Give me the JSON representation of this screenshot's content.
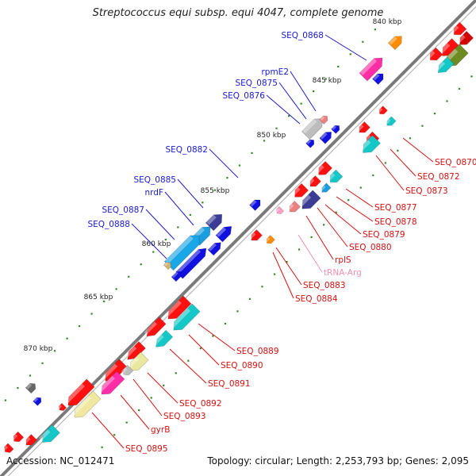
{
  "title": "Streptococcus equi subsp. equi 4047, complete genome",
  "footer": {
    "accession": "Accession: NC_012471",
    "summary": "Topology: circular; Length: 2,253,793 bp; Genes: 2,095"
  },
  "colors": {
    "label_blue": "#1a1ad6",
    "label_red": "#d81010",
    "label_pink": "#ef8fb3",
    "backbone": "#7a7a7a",
    "tick_green": "#2e8b22"
  },
  "ticks": [
    "840 kbp",
    "845 kbp",
    "850 kbp",
    "855 kbp",
    "860 kbp",
    "865 kbp",
    "870 kbp"
  ],
  "blue_labels": [
    "SEQ_0868",
    "rpmE2",
    "SEQ_0875",
    "SEQ_0876",
    "SEQ_0882",
    "SEQ_0885",
    "nrdF",
    "SEQ_0887",
    "SEQ_0888"
  ],
  "red_labels": [
    "SEQ_0870",
    "SEQ_0872",
    "SEQ_0873",
    "SEQ_0877",
    "SEQ_0878",
    "SEQ_0879",
    "SEQ_0880",
    "rplS",
    "SEQ_0883",
    "SEQ_0884",
    "SEQ_0889",
    "SEQ_0890",
    "SEQ_0891",
    "SEQ_0892",
    "SEQ_0893",
    "gyrB",
    "SEQ_0895"
  ],
  "pink_labels": [
    "tRNA-Arg"
  ]
}
